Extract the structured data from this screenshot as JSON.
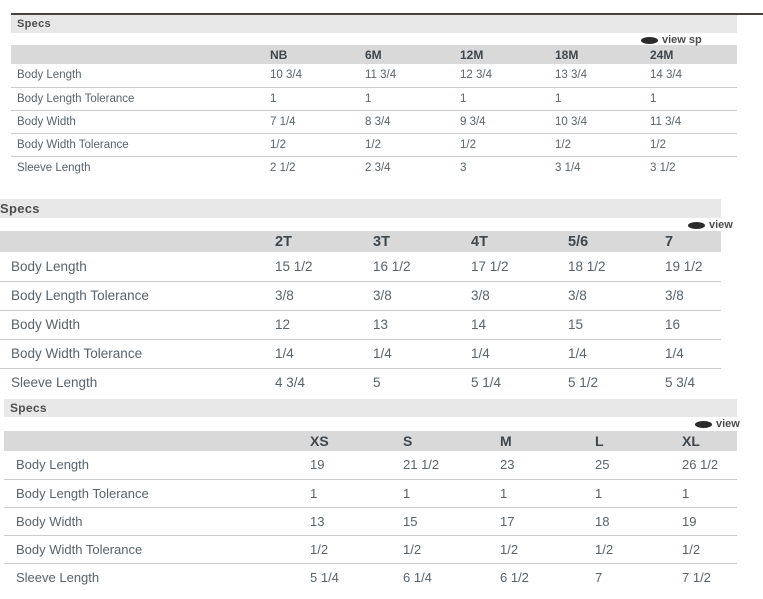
{
  "colors": {
    "specs_bar_bg": "#e8e8e8",
    "column_header_bg": "#d9d9d9",
    "row_divider": "#cbcbcb",
    "top_border": "#474240",
    "text_primary": "#58636b",
    "icon_dark": "#2b2b2b"
  },
  "tables": [
    {
      "title": "Specs",
      "view_link": "view sp",
      "columns": [
        "NB",
        "6M",
        "12M",
        "18M",
        "24M"
      ],
      "rows": [
        {
          "label": "Body Length",
          "values": [
            "10 3/4",
            "11 3/4",
            "12 3/4",
            "13 3/4",
            "14 3/4"
          ]
        },
        {
          "label": "Body Length Tolerance",
          "values": [
            "1",
            "1",
            "1",
            "1",
            "1"
          ]
        },
        {
          "label": "Body Width",
          "values": [
            "7 1/4",
            "8 3/4",
            "9 3/4",
            "10 3/4",
            "11 3/4"
          ]
        },
        {
          "label": "Body Width Tolerance",
          "values": [
            "1/2",
            "1/2",
            "1/2",
            "1/2",
            "1/2"
          ]
        },
        {
          "label": "Sleeve Length",
          "values": [
            "2 1/2",
            "2 3/4",
            "3",
            "3 1/4",
            "3 1/2"
          ]
        }
      ]
    },
    {
      "title": "Specs",
      "view_link": "view",
      "columns": [
        "2T",
        "3T",
        "4T",
        "5/6",
        "7"
      ],
      "rows": [
        {
          "label": "Body Length",
          "values": [
            "15 1/2",
            "16 1/2",
            "17 1/2",
            "18 1/2",
            "19 1/2"
          ]
        },
        {
          "label": "Body Length Tolerance",
          "values": [
            "3/8",
            "3/8",
            "3/8",
            "3/8",
            "3/8"
          ]
        },
        {
          "label": "Body Width",
          "values": [
            "12",
            "13",
            "14",
            "15",
            "16"
          ]
        },
        {
          "label": "Body Width Tolerance",
          "values": [
            "1/4",
            "1/4",
            "1/4",
            "1/4",
            "1/4"
          ]
        },
        {
          "label": "Sleeve Length",
          "values": [
            "4 3/4",
            "5",
            "5 1/4",
            "5 1/2",
            "5 3/4"
          ]
        }
      ]
    },
    {
      "title": "Specs",
      "view_link": "view",
      "columns": [
        "XS",
        "S",
        "M",
        "L",
        "XL"
      ],
      "rows": [
        {
          "label": "Body Length",
          "values": [
            "19",
            "21 1/2",
            "23",
            "25",
            "26 1/2"
          ]
        },
        {
          "label": "Body Length Tolerance",
          "values": [
            "1",
            "1",
            "1",
            "1",
            "1"
          ]
        },
        {
          "label": "Body Width",
          "values": [
            "13",
            "15",
            "17",
            "18",
            "19"
          ]
        },
        {
          "label": "Body Width Tolerance",
          "values": [
            "1/2",
            "1/2",
            "1/2",
            "1/2",
            "1/2"
          ]
        },
        {
          "label": "Sleeve Length",
          "values": [
            "5 1/4",
            "6 1/4",
            "6 1/2",
            "7",
            "7 1/2"
          ]
        }
      ]
    }
  ]
}
